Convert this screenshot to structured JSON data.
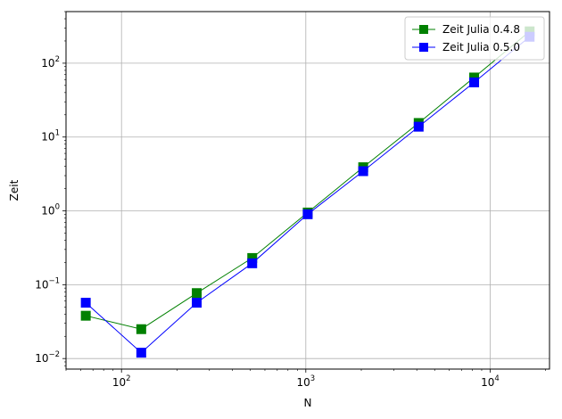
{
  "chart_data": {
    "type": "line",
    "title": "",
    "xlabel": "N",
    "ylabel": "Zeit",
    "xscale": "log",
    "yscale": "log",
    "xlim": [
      50,
      21000
    ],
    "ylim": [
      0.0072,
      500
    ],
    "grid": true,
    "legend_position": "top-right",
    "x_ticks": [
      {
        "value": 100,
        "base": "10",
        "exp": "2"
      },
      {
        "value": 1000,
        "base": "10",
        "exp": "3"
      },
      {
        "value": 10000,
        "base": "10",
        "exp": "4"
      }
    ],
    "y_ticks": [
      {
        "value": 0.01,
        "base": "10",
        "exp": "−2"
      },
      {
        "value": 0.1,
        "base": "10",
        "exp": "−1"
      },
      {
        "value": 1,
        "base": "10",
        "exp": "0"
      },
      {
        "value": 10,
        "base": "10",
        "exp": "1"
      },
      {
        "value": 100,
        "base": "10",
        "exp": "2"
      }
    ],
    "x": [
      64,
      128,
      256,
      512,
      1024,
      2048,
      4096,
      8192,
      16384
    ],
    "series": [
      {
        "name": "Zeit Julia 0.4.8",
        "color": "#008000",
        "marker": "square",
        "values": [
          0.038,
          0.025,
          0.077,
          0.23,
          0.95,
          3.9,
          15.5,
          64,
          270
        ]
      },
      {
        "name": "Zeit Julia 0.5.0",
        "color": "#0000ff",
        "marker": "square",
        "values": [
          0.057,
          0.012,
          0.057,
          0.195,
          0.9,
          3.45,
          13.8,
          55,
          228
        ]
      }
    ]
  }
}
